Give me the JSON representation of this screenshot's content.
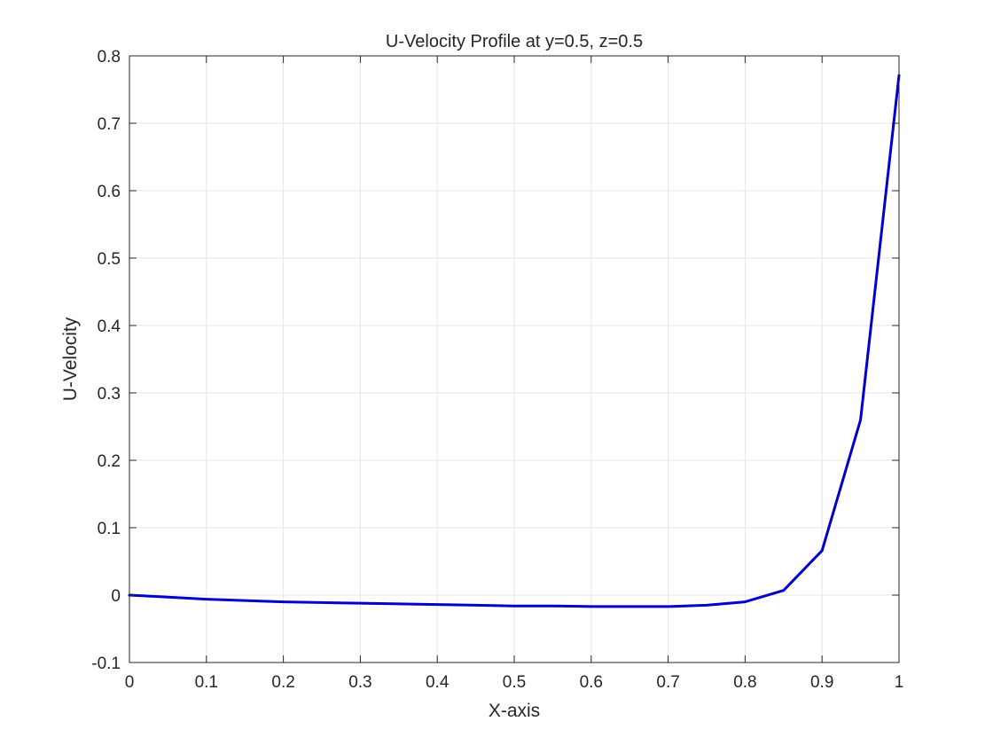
{
  "chart_data": {
    "type": "line",
    "title": "U-Velocity Profile at y=0.5, z=0.5",
    "xlabel": "X-axis",
    "ylabel": "U-Velocity",
    "xlim": [
      0,
      1
    ],
    "ylim": [
      -0.1,
      0.8
    ],
    "xticks": [
      0,
      0.1,
      0.2,
      0.3,
      0.4,
      0.5,
      0.6,
      0.7,
      0.8,
      0.9,
      1
    ],
    "xtick_labels": [
      "0",
      "0.1",
      "0.2",
      "0.3",
      "0.4",
      "0.5",
      "0.6",
      "0.7",
      "0.8",
      "0.9",
      "1"
    ],
    "yticks": [
      -0.1,
      0,
      0.1,
      0.2,
      0.3,
      0.4,
      0.5,
      0.6,
      0.7,
      0.8
    ],
    "ytick_labels": [
      "-0.1",
      "0",
      "0.1",
      "0.2",
      "0.3",
      "0.4",
      "0.5",
      "0.6",
      "0.7",
      "0.8"
    ],
    "grid": true,
    "line_color": "#0000cc",
    "series": [
      {
        "x": [
          0,
          0.05,
          0.1,
          0.15,
          0.2,
          0.25,
          0.3,
          0.35,
          0.4,
          0.45,
          0.5,
          0.55,
          0.6,
          0.65,
          0.7,
          0.75,
          0.8,
          0.85,
          0.9,
          0.95,
          1
        ],
        "values": [
          0,
          -0.003,
          -0.006,
          -0.008,
          -0.01,
          -0.011,
          -0.012,
          -0.013,
          -0.014,
          -0.015,
          -0.016,
          -0.016,
          -0.017,
          -0.017,
          -0.017,
          -0.015,
          -0.01,
          0.007,
          0.066,
          0.26,
          0.771
        ]
      }
    ]
  }
}
